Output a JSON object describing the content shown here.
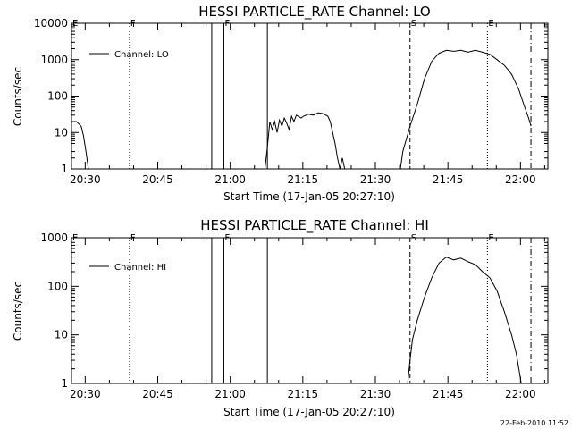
{
  "footer": {
    "timestamp": "22-Feb-2010 11:52"
  },
  "chart_data": [
    {
      "type": "line",
      "title": "HESSI PARTICLE_RATE Channel: LO",
      "xlabel": "Start Time (17-Jan-05 20:27:10)",
      "ylabel": "Counts/sec",
      "scale_y": "log",
      "grid": false,
      "legend_position": "top-left",
      "xlim": [
        "20:27:10",
        "22:05:40"
      ],
      "ylim": [
        1,
        10000
      ],
      "x_ticks": [
        "20:30",
        "20:45",
        "21:00",
        "21:15",
        "21:30",
        "21:45",
        "22:00"
      ],
      "y_ticks": [
        "1",
        "10",
        "100",
        "1000",
        "10000"
      ],
      "markers": [
        {
          "label": "E",
          "time": "20:27:10",
          "style": "solid"
        },
        {
          "label": "F",
          "time": "20:39:10",
          "style": "dotted"
        },
        {
          "label": "",
          "time": "20:56:10",
          "style": "solid"
        },
        {
          "label": "F",
          "time": "20:58:40",
          "style": "solid"
        },
        {
          "label": "",
          "time": "21:07:40",
          "style": "solid"
        },
        {
          "label": "S",
          "time": "21:37:10",
          "style": "dashed"
        },
        {
          "label": "E",
          "time": "21:53:10",
          "style": "dotted"
        },
        {
          "label": "",
          "time": "22:02:10",
          "style": "dashdot"
        }
      ],
      "series": [
        {
          "name": "Channel: LO",
          "segments": [
            [
              [
                "20:27:10",
                20
              ],
              [
                "20:28:10",
                20
              ],
              [
                "20:29:10",
                15
              ],
              [
                "20:29:40",
                8
              ],
              [
                "20:30:10",
                3
              ],
              [
                "20:30:40",
                1
              ]
            ],
            [
              [
                "21:07:10",
                1
              ],
              [
                "21:07:40",
                4
              ],
              [
                "21:08:10",
                20
              ],
              [
                "21:08:40",
                12
              ],
              [
                "21:09:10",
                20
              ],
              [
                "21:09:40",
                10
              ],
              [
                "21:10:10",
                22
              ],
              [
                "21:10:40",
                15
              ],
              [
                "21:11:10",
                25
              ],
              [
                "21:11:40",
                18
              ],
              [
                "21:12:10",
                12
              ],
              [
                "21:12:40",
                28
              ],
              [
                "21:13:10",
                20
              ],
              [
                "21:13:40",
                30
              ],
              [
                "21:14:40",
                25
              ],
              [
                "21:15:10",
                28
              ],
              [
                "21:16:10",
                32
              ],
              [
                "21:17:10",
                30
              ],
              [
                "21:18:10",
                35
              ],
              [
                "21:19:10",
                33
              ],
              [
                "21:20:10",
                28
              ],
              [
                "21:20:40",
                20
              ],
              [
                "21:21:10",
                10
              ],
              [
                "21:21:40",
                5
              ],
              [
                "21:22:10",
                2
              ],
              [
                "21:22:40",
                1
              ],
              [
                "21:23:10",
                2
              ],
              [
                "21:23:40",
                1
              ]
            ],
            [
              [
                "21:35:10",
                1
              ],
              [
                "21:35:40",
                3
              ],
              [
                "21:37:10",
                15
              ],
              [
                "21:38:40",
                60
              ],
              [
                "21:40:10",
                300
              ],
              [
                "21:41:40",
                900
              ],
              [
                "21:43:10",
                1500
              ],
              [
                "21:44:40",
                1800
              ],
              [
                "21:46:10",
                1700
              ],
              [
                "21:47:40",
                1800
              ],
              [
                "21:49:10",
                1600
              ],
              [
                "21:50:40",
                1800
              ],
              [
                "21:52:10",
                1600
              ],
              [
                "21:53:40",
                1400
              ],
              [
                "21:55:10",
                1000
              ],
              [
                "21:56:40",
                700
              ],
              [
                "21:58:10",
                400
              ],
              [
                "21:59:40",
                150
              ],
              [
                "22:00:40",
                60
              ],
              [
                "22:01:40",
                25
              ],
              [
                "22:02:10",
                15
              ]
            ]
          ]
        }
      ]
    },
    {
      "type": "line",
      "title": "HESSI PARTICLE_RATE Channel: HI",
      "xlabel": "Start Time (17-Jan-05 20:27:10)",
      "ylabel": "Counts/sec",
      "scale_y": "log",
      "grid": false,
      "legend_position": "top-left",
      "xlim": [
        "20:27:10",
        "22:05:40"
      ],
      "ylim": [
        1,
        1000
      ],
      "x_ticks": [
        "20:30",
        "20:45",
        "21:00",
        "21:15",
        "21:30",
        "21:45",
        "22:00"
      ],
      "y_ticks": [
        "1",
        "10",
        "100",
        "1000"
      ],
      "markers": [
        {
          "label": "E",
          "time": "20:27:10",
          "style": "solid"
        },
        {
          "label": "F",
          "time": "20:39:10",
          "style": "dotted"
        },
        {
          "label": "",
          "time": "20:56:10",
          "style": "solid"
        },
        {
          "label": "F",
          "time": "20:58:40",
          "style": "solid"
        },
        {
          "label": "",
          "time": "21:07:40",
          "style": "solid"
        },
        {
          "label": "S",
          "time": "21:37:10",
          "style": "dashed"
        },
        {
          "label": "E",
          "time": "21:53:10",
          "style": "dotted"
        },
        {
          "label": "",
          "time": "22:02:10",
          "style": "dashdot"
        }
      ],
      "series": [
        {
          "name": "Channel: HI",
          "segments": [
            [
              [
                "21:36:40",
                1
              ],
              [
                "21:37:10",
                3
              ],
              [
                "21:37:40",
                8
              ],
              [
                "21:38:40",
                20
              ],
              [
                "21:40:10",
                60
              ],
              [
                "21:41:40",
                150
              ],
              [
                "21:43:10",
                300
              ],
              [
                "21:44:40",
                400
              ],
              [
                "21:46:10",
                350
              ],
              [
                "21:47:40",
                380
              ],
              [
                "21:49:10",
                320
              ],
              [
                "21:50:40",
                280
              ],
              [
                "21:52:10",
                200
              ],
              [
                "21:53:40",
                150
              ],
              [
                "21:55:10",
                80
              ],
              [
                "21:56:40",
                30
              ],
              [
                "21:58:10",
                10
              ],
              [
                "21:59:10",
                4
              ],
              [
                "21:59:40",
                2
              ],
              [
                "22:00:10",
                1
              ]
            ]
          ]
        }
      ]
    }
  ]
}
